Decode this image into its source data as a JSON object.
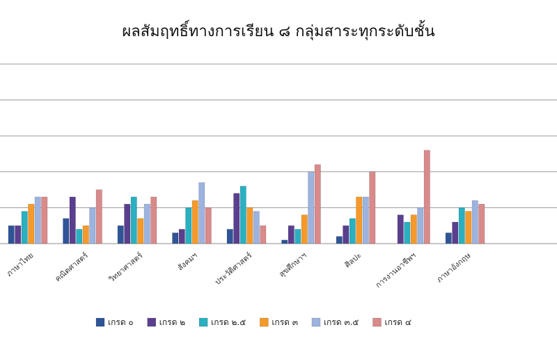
{
  "chart_data": {
    "type": "bar",
    "title": "ผลสัมฤทธิ์ทางการเรียน ๘ กลุ่มสาระทุกระดับชั้น",
    "xlabel": "",
    "ylabel": "",
    "ylim": [
      0,
      50
    ],
    "grid": true,
    "legend_position": "bottom",
    "categories": [
      "ภาษาไทย",
      "คณิตศาสตร์",
      "วิทยาศาสตร์",
      "สังคมฯ",
      "ประวัติศาสตร์",
      "สุขศึกษาฯ",
      "ศิลปะ",
      "การงานอาชีพฯ",
      "ภาษาอังกฤษ"
    ],
    "series": [
      {
        "name": "เกรด ๐",
        "color": "#2f5597",
        "values": [
          5,
          7,
          5,
          3,
          4,
          1,
          2,
          0,
          3
        ]
      },
      {
        "name": "เกรด ๒",
        "color": "#5b3f8f",
        "values": [
          5,
          13,
          11,
          4,
          14,
          5,
          5,
          8,
          6
        ]
      },
      {
        "name": "เกรด ๒.๕",
        "color": "#2ab0c0",
        "values": [
          9,
          4,
          13,
          10,
          16,
          4,
          7,
          6,
          10
        ]
      },
      {
        "name": "เกรด ๓",
        "color": "#f59a2a",
        "values": [
          11,
          5,
          7,
          12,
          10,
          8,
          13,
          8,
          9
        ]
      },
      {
        "name": "เกรด ๓.๕",
        "color": "#9db3df",
        "values": [
          13,
          10,
          11,
          17,
          9,
          20,
          13,
          10,
          12
        ]
      },
      {
        "name": "เกรด ๔",
        "color": "#d98a8a",
        "values": [
          13,
          15,
          13,
          10,
          5,
          22,
          20,
          26,
          11
        ]
      }
    ]
  }
}
